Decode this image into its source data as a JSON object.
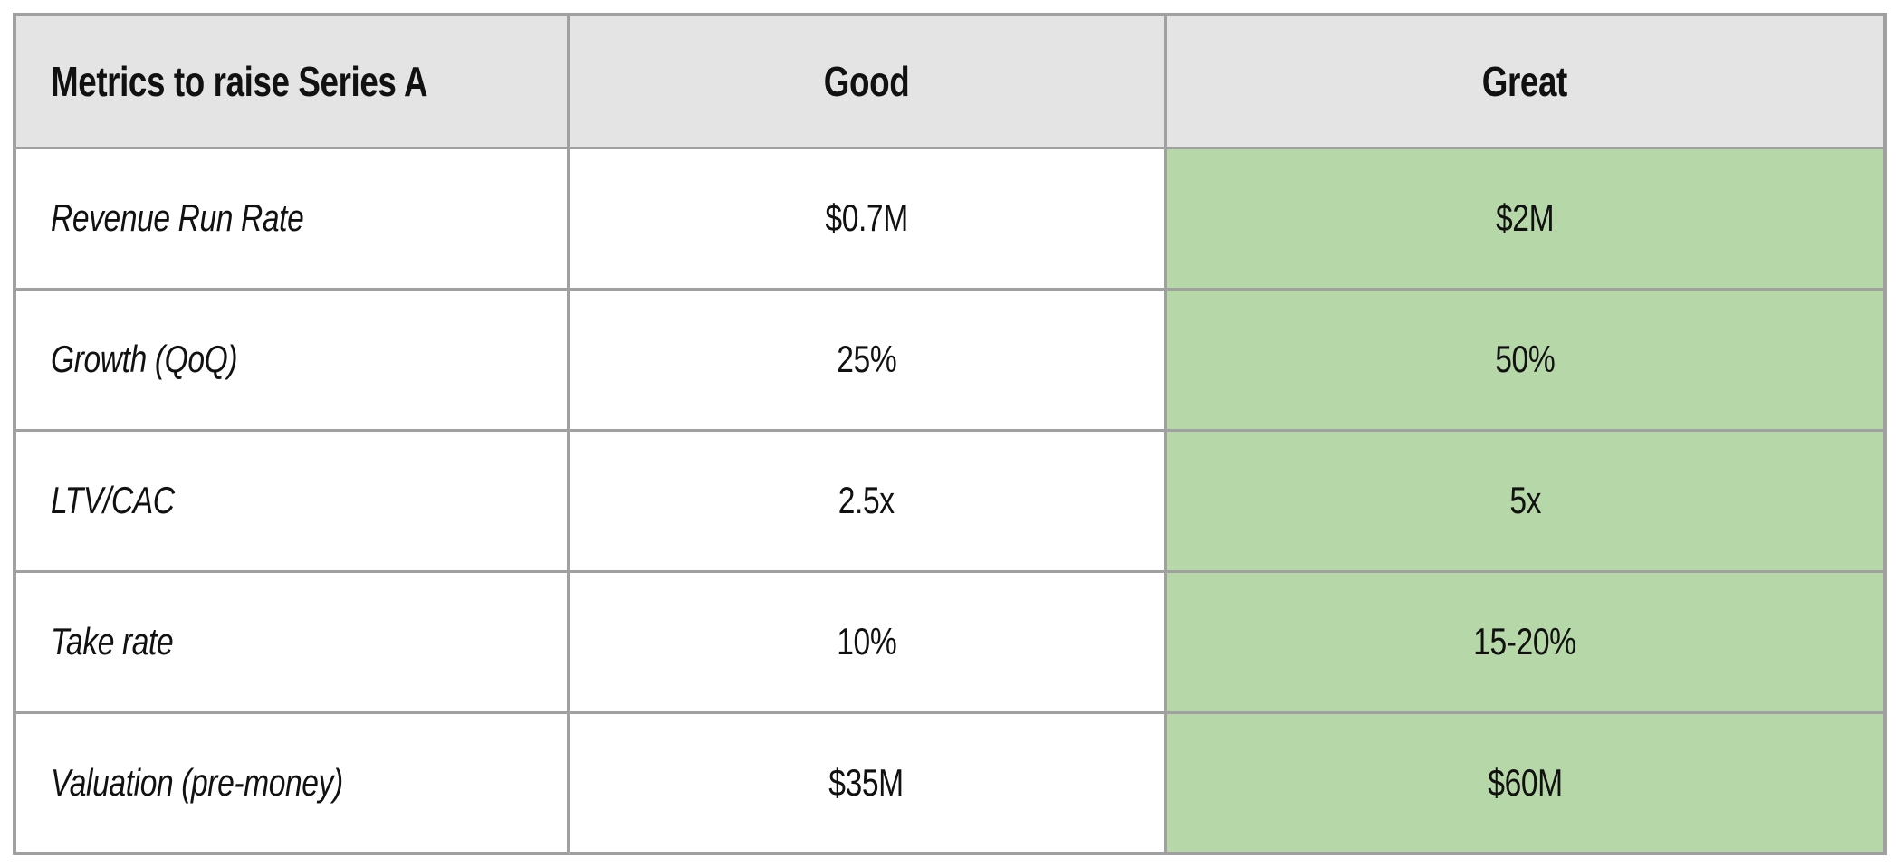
{
  "table": {
    "columns": [
      {
        "key": "metric",
        "label": "Metrics to raise Series A"
      },
      {
        "key": "good",
        "label": "Good"
      },
      {
        "key": "great",
        "label": "Great"
      }
    ],
    "rows": [
      {
        "metric": "Revenue Run Rate",
        "good": "$0.7M",
        "great": "$2M"
      },
      {
        "metric": "Growth (QoQ)",
        "good": "25%",
        "great": "50%"
      },
      {
        "metric": "LTV/CAC",
        "good": "2.5x",
        "great": "5x"
      },
      {
        "metric": "Take rate",
        "good": "10%",
        "great": "15-20%"
      },
      {
        "metric": "Valuation (pre-money)",
        "good": "$35M",
        "great": "$60M"
      }
    ],
    "highlight_column": "Great"
  },
  "colors": {
    "header_bg": "#e4e4e4",
    "great_column_bg": "#b6d7a8",
    "border": "#a0a0a0",
    "cell_bg": "#ffffff",
    "text": "#111111"
  }
}
